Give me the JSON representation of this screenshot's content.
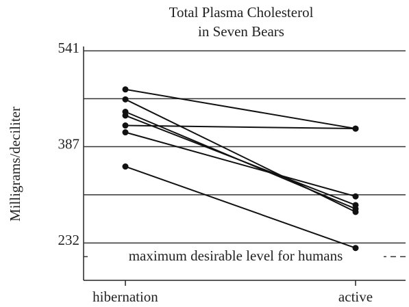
{
  "chart_data": {
    "type": "slope",
    "title": [
      "Total Plasma Cholesterol",
      "in Seven Bears"
    ],
    "y_label": "Milligrams/deciliter",
    "categories": [
      "hibernation",
      "active"
    ],
    "series": [
      {
        "values": [
          479,
          416
        ]
      },
      {
        "values": [
          421,
          416
        ]
      },
      {
        "values": [
          355,
          224
        ]
      },
      {
        "values": [
          463,
          282
        ]
      },
      {
        "values": [
          443,
          287
        ]
      },
      {
        "values": [
          437,
          293
        ]
      },
      {
        "values": [
          410,
          307
        ]
      }
    ],
    "color": "#111",
    "ylim": [
      172,
      548
    ],
    "yticks": [
      232,
      387,
      541
    ],
    "grid_lines": [
      232,
      309.5,
      387,
      464,
      541
    ],
    "reference_line": {
      "value": 210,
      "label": "maximum desirable level for humans"
    }
  }
}
